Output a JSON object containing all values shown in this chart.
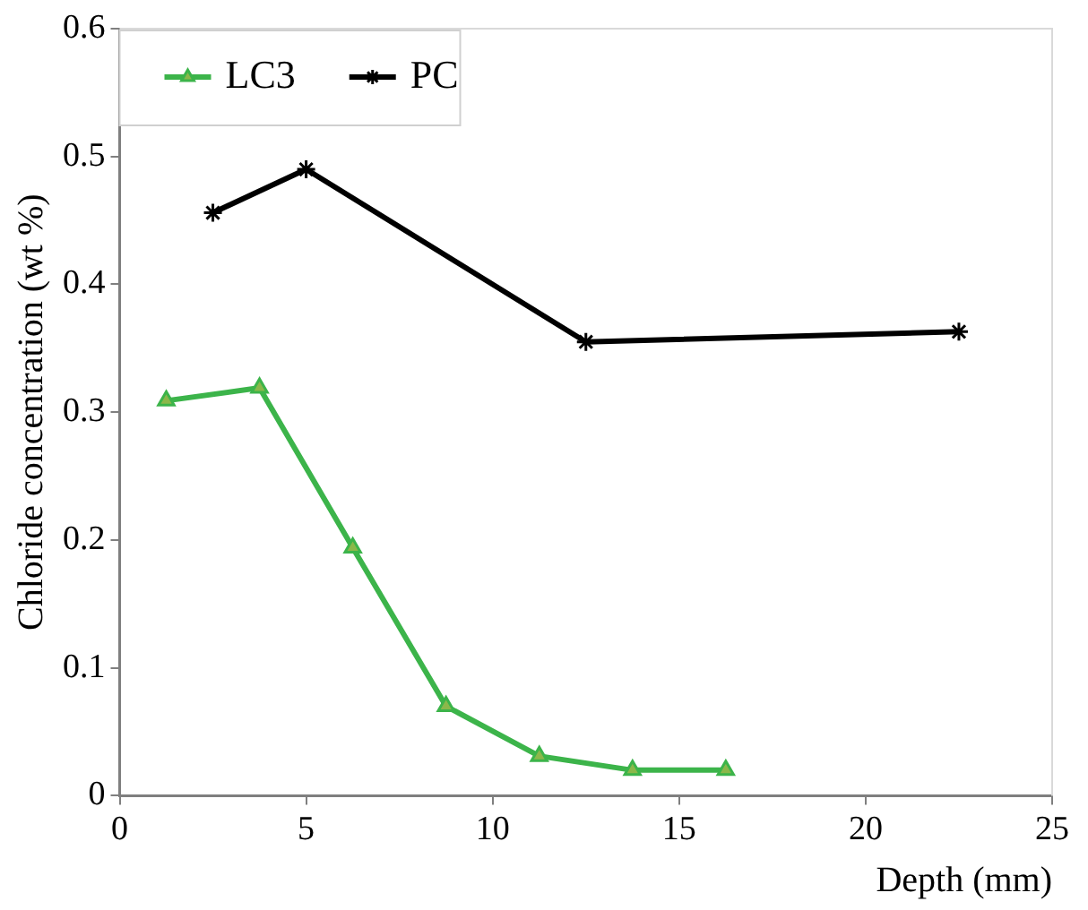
{
  "chart_data": {
    "type": "line",
    "xlabel": "Depth (mm)",
    "ylabel": "Chloride concentration (wt %)",
    "xlim": [
      0,
      25
    ],
    "xticks": [
      0,
      5,
      10,
      15,
      20,
      25
    ],
    "ylim": [
      0,
      0.6
    ],
    "yticks": [
      0,
      0.1,
      0.2,
      0.3,
      0.4,
      0.5,
      0.6
    ],
    "grid": false,
    "legend": "top left",
    "line_style": "solid",
    "series": [
      {
        "name": "LC3",
        "color": "#3cb44a",
        "marker": "triangle",
        "x": [
          1.25,
          3.75,
          6.25,
          8.75,
          11.25,
          13.75,
          16.25
        ],
        "values": [
          0.309,
          0.319,
          0.194,
          0.07,
          0.031,
          0.02,
          0.02
        ]
      },
      {
        "name": "PC",
        "color": "#000000",
        "marker": "cross",
        "x": [
          2.5,
          5,
          12.5,
          22.5
        ],
        "values": [
          0.456,
          0.49,
          0.355,
          0.363
        ]
      }
    ]
  }
}
